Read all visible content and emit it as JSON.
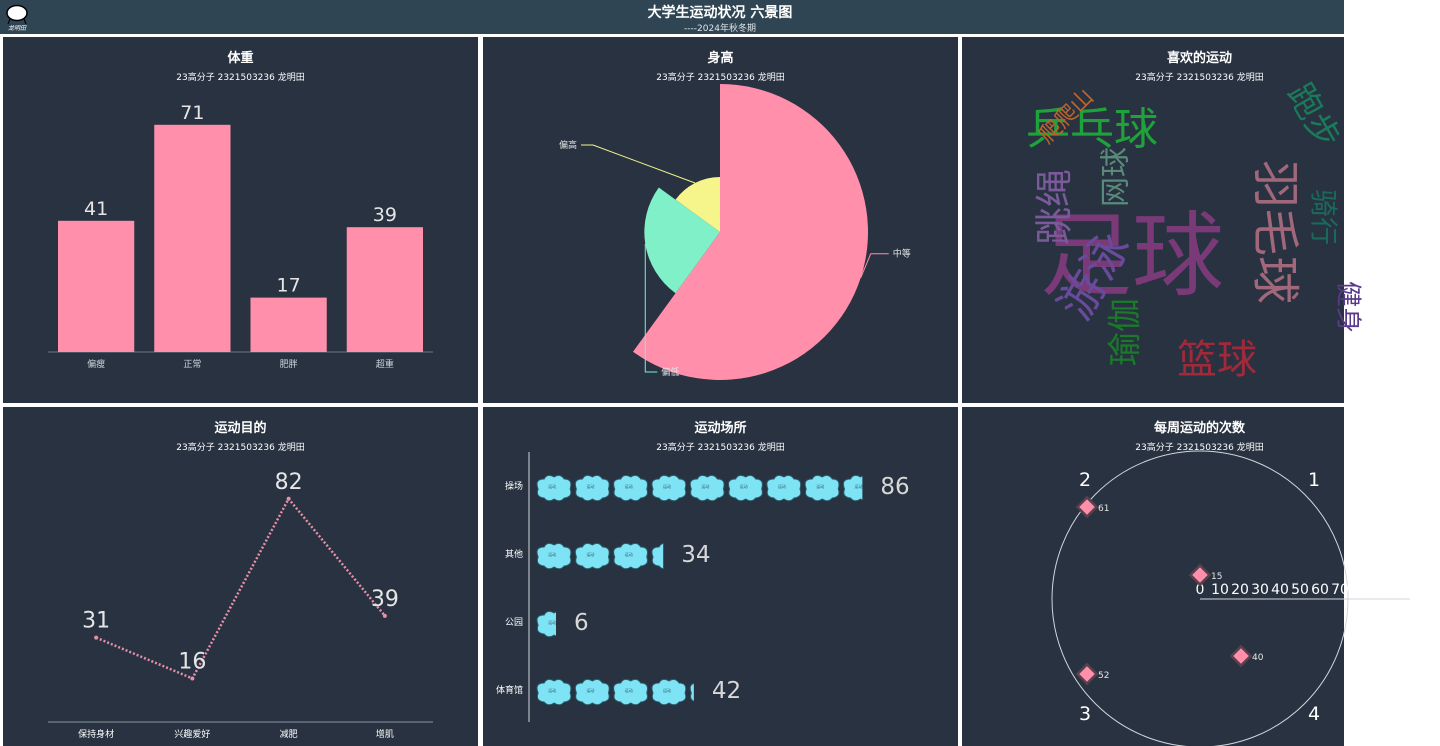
{
  "header": {
    "title": "大学生运动状况 六景图",
    "subtitle": "----2024年秋冬期",
    "logo_text": "龙明田"
  },
  "colors": {
    "bg": "#283241",
    "header": "#2f4553",
    "pink": "#ff8fab",
    "cyan": "#7ee3f5"
  },
  "chart_data": [
    {
      "id": "weight",
      "type": "bar",
      "title": "体重",
      "subtitle": "23高分子 2321503236 龙明田",
      "categories": [
        "偏瘦",
        "正常",
        "肥胖",
        "超重"
      ],
      "values": [
        41,
        71,
        17,
        39
      ],
      "ylim": [
        0,
        75
      ],
      "color": "#ff8fab"
    },
    {
      "id": "height",
      "type": "pie",
      "rose": true,
      "title": "身高",
      "subtitle": "23高分子 2321503236 龙明田",
      "slices": [
        {
          "name": "中等",
          "value": 120,
          "color": "#ff8fab"
        },
        {
          "name": "偏低",
          "value": 50,
          "color": "#80f0c9"
        },
        {
          "name": "偏高",
          "value": 30,
          "color": "#f5f58c"
        }
      ]
    },
    {
      "id": "sports",
      "type": "wordcloud",
      "title": "喜欢的运动",
      "subtitle": "23高分子 2321503236 龙明田",
      "words": [
        {
          "text": "足球",
          "color": "#7a3a78"
        },
        {
          "text": "乒乓球",
          "color": "#1ea33a"
        },
        {
          "text": "羽毛球",
          "color": "#a0687a"
        },
        {
          "text": "游泳",
          "color": "#6a4a9a"
        },
        {
          "text": "跳绳",
          "color": "#7a5a9a"
        },
        {
          "text": "篮球",
          "color": "#a02a3a"
        },
        {
          "text": "网球",
          "color": "#5a8a7a"
        },
        {
          "text": "爬爬山",
          "color": "#c0632a"
        },
        {
          "text": "瑜伽",
          "color": "#1a7a2a"
        },
        {
          "text": "跑步",
          "color": "#1a7a5a"
        },
        {
          "text": "骑行",
          "color": "#1a6a5a"
        },
        {
          "text": "健身",
          "color": "#5a3a8a"
        }
      ]
    },
    {
      "id": "purpose",
      "type": "line",
      "title": "运动目的",
      "subtitle": "23高分子 2321503236 龙明田",
      "categories": [
        "保持身材",
        "兴趣爱好",
        "减肥",
        "增肌"
      ],
      "values": [
        31,
        16,
        82,
        39
      ],
      "ylim": [
        0,
        90
      ],
      "color": "#e88fa8"
    },
    {
      "id": "venue",
      "type": "bar",
      "pictorial": true,
      "horizontal": true,
      "title": "运动场所",
      "subtitle": "23高分子 2321503236 龙明田",
      "categories": [
        "操场",
        "其他",
        "公园",
        "体育馆"
      ],
      "values": [
        86,
        34,
        6,
        42
      ],
      "symbol_value": 10,
      "symbol_text": "运动",
      "color": "#7ee3f5"
    },
    {
      "id": "weekly",
      "type": "scatter",
      "polar": true,
      "title": "每周运动的次数",
      "subtitle": "23高分子 2321503236 龙明田",
      "angle_categories": [
        "1",
        "2",
        "3",
        "4"
      ],
      "radius_ticks": [
        "0",
        "10",
        "20",
        "30",
        "40",
        "50",
        "60",
        "70"
      ],
      "points": [
        {
          "value": 15,
          "label": "15"
        },
        {
          "value": 61,
          "label": "61"
        },
        {
          "value": 52,
          "label": "52"
        },
        {
          "value": 40,
          "label": "40"
        }
      ],
      "color": "#ff8fab"
    }
  ]
}
